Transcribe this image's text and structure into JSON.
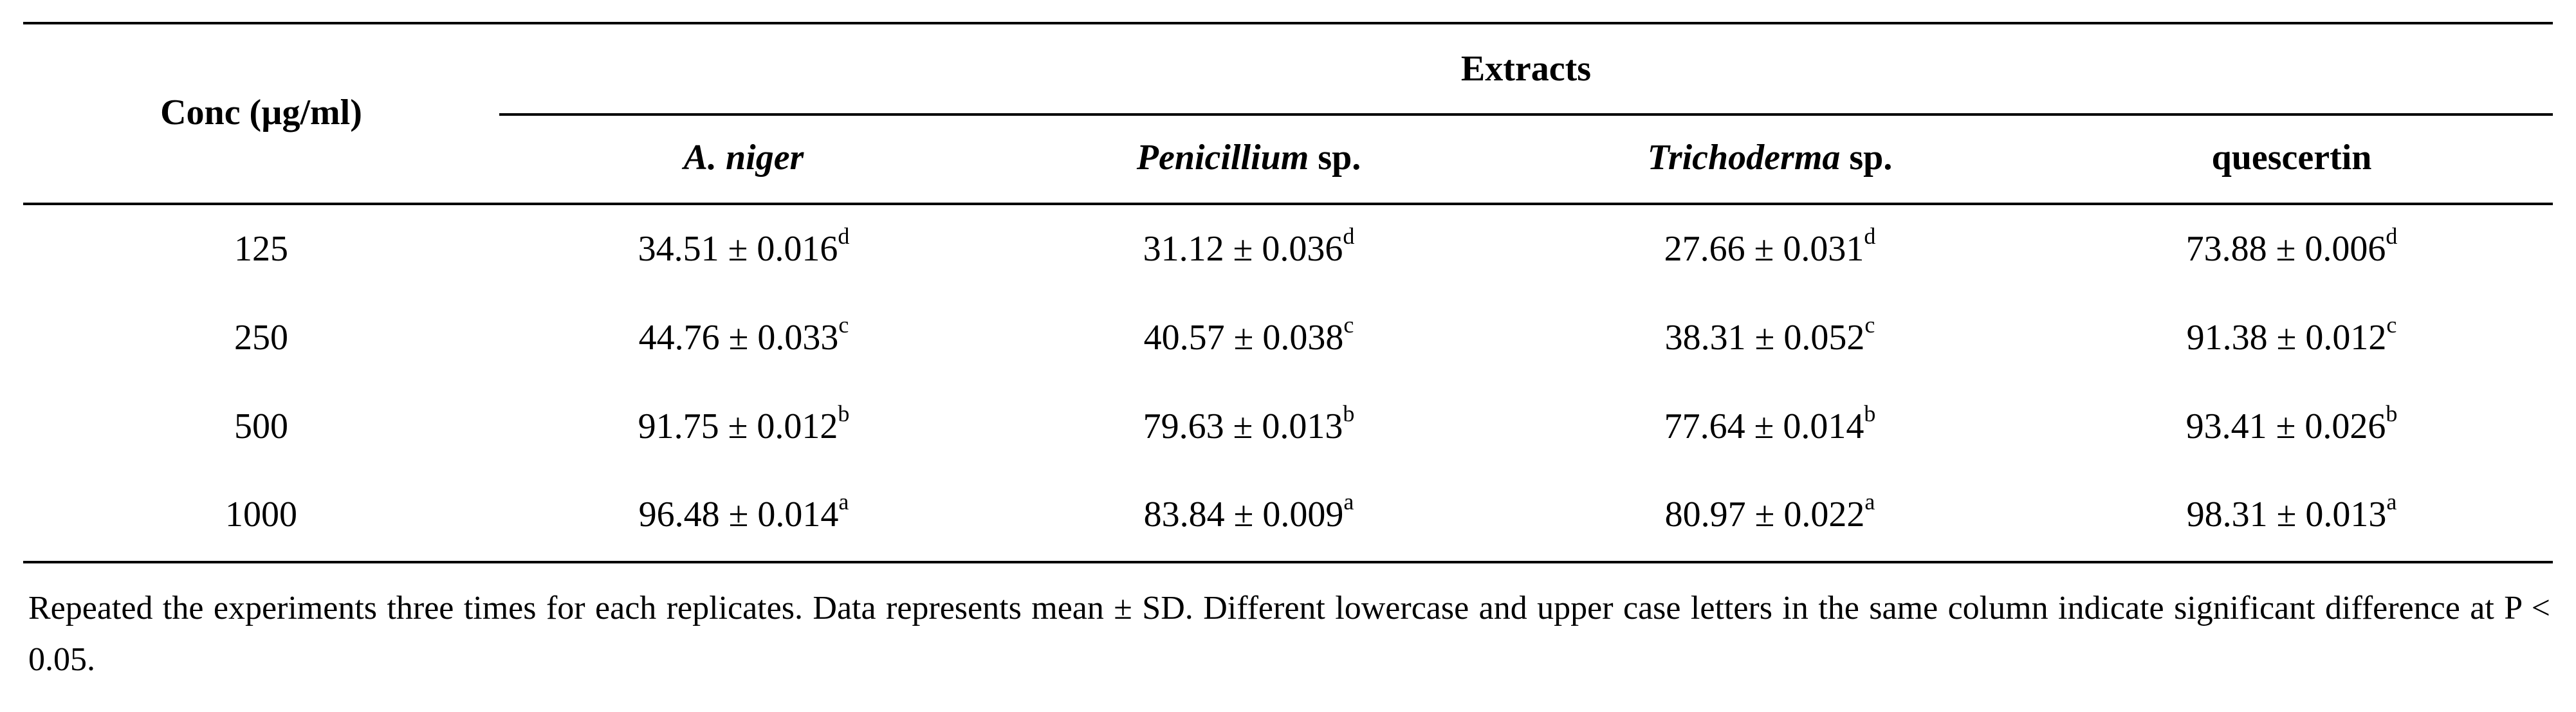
{
  "table": {
    "conc_header": "Conc (µg/ml)",
    "extracts_header": "Extracts",
    "columns": [
      {
        "italic": "A. niger",
        "rest": ""
      },
      {
        "italic": "Penicillium",
        "rest": " sp."
      },
      {
        "italic": "Trichoderma",
        "rest": " sp."
      },
      {
        "italic": "",
        "rest": "quescertin"
      }
    ],
    "rows": [
      {
        "conc": "125",
        "cells": [
          {
            "value": "34.51 ± 0.016",
            "sup": "d"
          },
          {
            "value": "31.12 ± 0.036",
            "sup": "d"
          },
          {
            "value": "27.66 ± 0.031",
            "sup": "d"
          },
          {
            "value": "73.88 ± 0.006",
            "sup": "d"
          }
        ]
      },
      {
        "conc": "250",
        "cells": [
          {
            "value": "44.76 ± 0.033",
            "sup": "c"
          },
          {
            "value": "40.57 ± 0.038",
            "sup": "c"
          },
          {
            "value": "38.31 ± 0.052",
            "sup": "c"
          },
          {
            "value": "91.38 ± 0.012",
            "sup": "c"
          }
        ]
      },
      {
        "conc": "500",
        "cells": [
          {
            "value": "91.75 ± 0.012",
            "sup": "b"
          },
          {
            "value": "79.63 ± 0.013",
            "sup": "b"
          },
          {
            "value": "77.64 ± 0.014",
            "sup": "b"
          },
          {
            "value": "93.41 ± 0.026",
            "sup": "b"
          }
        ]
      },
      {
        "conc": "1000",
        "cells": [
          {
            "value": "96.48 ± 0.014",
            "sup": "a"
          },
          {
            "value": "83.84 ± 0.009",
            "sup": "a"
          },
          {
            "value": "80.97 ± 0.022",
            "sup": "a"
          },
          {
            "value": "98.31 ± 0.013",
            "sup": "a"
          }
        ]
      }
    ],
    "footnote": "Repeated the experiments three times for each replicates. Data represents mean ± SD. Different lowercase and upper case letters in the same column indicate significant difference at P < 0.05."
  }
}
